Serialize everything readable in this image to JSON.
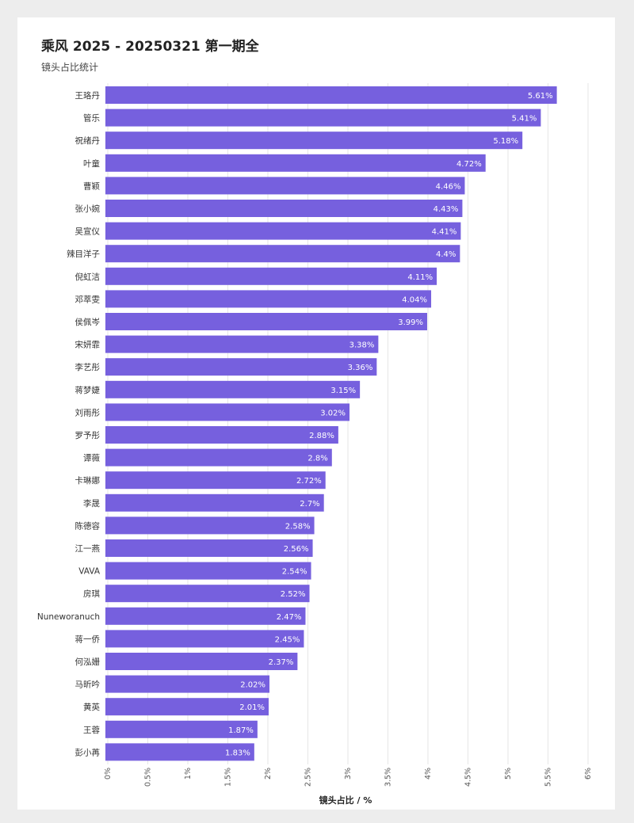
{
  "chart_data": {
    "type": "bar",
    "orientation": "horizontal",
    "title": "乘风 2025 - 20250321 第一期全",
    "subtitle": "镜头占比统计",
    "xlabel": "镜头占比 / %",
    "ylabel": "",
    "xlim": [
      0,
      6
    ],
    "xticks": [
      "0%",
      "0.5%",
      "1%",
      "1.5%",
      "2%",
      "2.5%",
      "3%",
      "3.5%",
      "4%",
      "4.5%",
      "5%",
      "5.5%",
      "6%"
    ],
    "grid": true,
    "bar_color": "#7660de",
    "categories": [
      "王珞丹",
      "管乐",
      "祝绪丹",
      "叶童",
      "曹颖",
      "张小婉",
      "吴宣仪",
      "辣目洋子",
      "倪虹洁",
      "邓萃雯",
      "侯佩岑",
      "宋妍霏",
      "李艺彤",
      "蒋梦婕",
      "刘雨彤",
      "罗予彤",
      "谭薇",
      "卡琳娜",
      "李晟",
      "陈德容",
      "江一燕",
      "VAVA",
      "房琪",
      "Nuneworanuch",
      "蒋一侨",
      "何泓姗",
      "马昕吟",
      "黄英",
      "王蓉",
      "彭小苒"
    ],
    "values": [
      5.61,
      5.41,
      5.18,
      4.72,
      4.46,
      4.43,
      4.41,
      4.4,
      4.11,
      4.04,
      3.99,
      3.38,
      3.36,
      3.15,
      3.02,
      2.88,
      2.8,
      2.72,
      2.7,
      2.58,
      2.56,
      2.54,
      2.52,
      2.47,
      2.45,
      2.37,
      2.02,
      2.01,
      1.87,
      1.83
    ],
    "value_labels": [
      "5.61%",
      "5.41%",
      "5.18%",
      "4.72%",
      "4.46%",
      "4.43%",
      "4.41%",
      "4.4%",
      "4.11%",
      "4.04%",
      "3.99%",
      "3.38%",
      "3.36%",
      "3.15%",
      "3.02%",
      "2.88%",
      "2.8%",
      "2.72%",
      "2.7%",
      "2.58%",
      "2.56%",
      "2.54%",
      "2.52%",
      "2.47%",
      "2.45%",
      "2.37%",
      "2.02%",
      "2.01%",
      "1.87%",
      "1.83%"
    ]
  }
}
